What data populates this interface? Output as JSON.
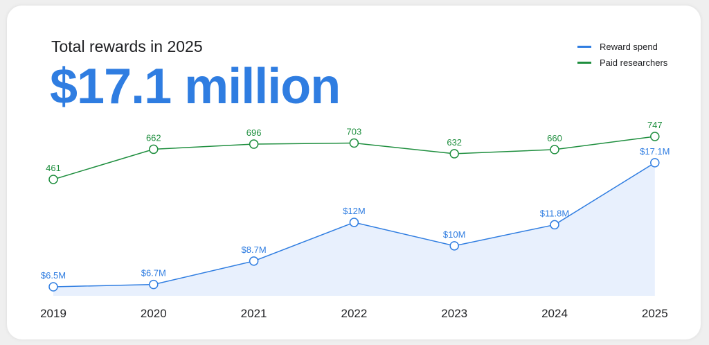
{
  "chart_data": {
    "type": "line",
    "subtitle": "Total rewards in 2025",
    "title": "$17.1 million",
    "categories": [
      "2019",
      "2020",
      "2021",
      "2022",
      "2023",
      "2024",
      "2025"
    ],
    "series": [
      {
        "name": "Reward spend",
        "color": "#2f7de1",
        "values": [
          6.5,
          6.7,
          8.7,
          12,
          10,
          11.8,
          17.1
        ],
        "labels": [
          "$6.5M",
          "$6.7M",
          "$8.7M",
          "$12M",
          "$10M",
          "$11.8M",
          "$17.1M"
        ],
        "area_fill": "#e8f0fd"
      },
      {
        "name": "Paid researchers",
        "color": "#1e8e3e",
        "values": [
          461,
          662,
          696,
          703,
          632,
          660,
          747
        ],
        "labels": [
          "461",
          "662",
          "696",
          "703",
          "632",
          "660",
          "747"
        ]
      }
    ],
    "legend_position": "top-right",
    "grid": false
  }
}
